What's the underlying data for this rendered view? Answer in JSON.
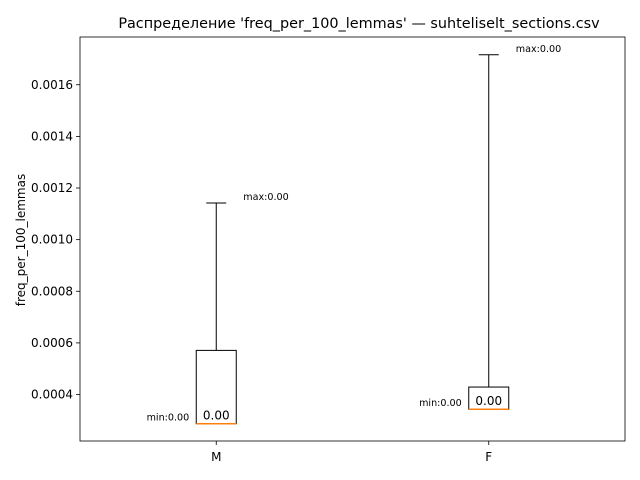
{
  "chart_data": {
    "type": "box",
    "title": "Распределение 'freq_per_100_lemmas' — suhteliselt_sections.csv",
    "xlabel": "",
    "ylabel": "freq_per_100_lemmas",
    "ylim": [
      0.00022,
      0.001785
    ],
    "yticks": [
      0.0004,
      0.0006,
      0.0008,
      0.001,
      0.0012,
      0.0014,
      0.0016
    ],
    "ytick_labels": [
      "0.0004",
      "0.0006",
      "0.0008",
      "0.0010",
      "0.0012",
      "0.0014",
      "0.0016"
    ],
    "categories": [
      "M",
      "F"
    ],
    "boxes": [
      {
        "category": "M",
        "min": 0.000287,
        "q1": 0.000287,
        "median": 0.000287,
        "q3": 0.000571,
        "max": 0.001142,
        "median_label": "0.00",
        "min_label": "min:0.00",
        "max_label": "max:0.00"
      },
      {
        "category": "F",
        "min": 0.000343,
        "q1": 0.000343,
        "median": 0.000343,
        "q3": 0.000429,
        "max": 0.001716,
        "median_label": "0.00",
        "min_label": "min:0.00",
        "max_label": "max:0.00"
      }
    ],
    "colors": {
      "box": "#000000",
      "median": "#ff7f0e",
      "whisker": "#000000"
    },
    "grid": false,
    "legend": "none"
  }
}
